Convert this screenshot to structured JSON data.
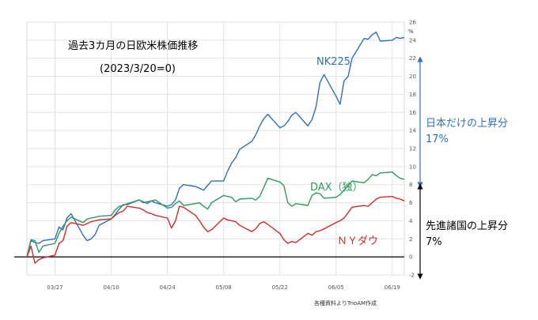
{
  "chart_data": {
    "type": "line",
    "title": "過去3カ月の日欧米株価推移",
    "subtitle": "(2023/3/20=0)",
    "unit_label": "%",
    "ylim": [
      -2,
      26
    ],
    "y_ticks": [
      -2,
      0,
      2,
      4,
      6,
      8,
      10,
      12,
      14,
      16,
      18,
      20,
      22,
      24,
      26
    ],
    "x_tick_labels": [
      "03/27",
      "04/10",
      "04/24",
      "05/08",
      "05/22",
      "06/05",
      "06/19"
    ],
    "x_tick_days": [
      7,
      21,
      35,
      49,
      63,
      77,
      91
    ],
    "grid": true,
    "source": "各種資料よりTrioAM作成",
    "series": [
      {
        "name": "NK225",
        "color": "#2f6fbd",
        "days": [
          0,
          1,
          2,
          3,
          4,
          7,
          8,
          9,
          10,
          11,
          14,
          15,
          16,
          17,
          18,
          21,
          22,
          23,
          24,
          25,
          28,
          29,
          30,
          31,
          32,
          35,
          36,
          37,
          38,
          39,
          42,
          43,
          44,
          45,
          46,
          49,
          50,
          51,
          52,
          53,
          56,
          57,
          58,
          59,
          60,
          63,
          64,
          65,
          66,
          67,
          70,
          71,
          72,
          73,
          74,
          77,
          78,
          79,
          80,
          81,
          84,
          85,
          86,
          87,
          88,
          91,
          92,
          93,
          94
        ],
        "values": [
          0,
          1.8,
          1.6,
          1.5,
          1.8,
          2.0,
          3.3,
          3.0,
          4.3,
          4.8,
          2.4,
          1.8,
          2.0,
          2.5,
          3.5,
          4.2,
          4.7,
          5.3,
          5.8,
          5.8,
          6.3,
          6.0,
          6.1,
          6.2,
          6.0,
          5.6,
          5.8,
          6.3,
          7.6,
          8.0,
          7.8,
          7.6,
          7.4,
          7.9,
          8.4,
          8.4,
          9.5,
          10.4,
          11.0,
          11.9,
          12.8,
          13.5,
          14.5,
          15.3,
          15.8,
          14.3,
          14.5,
          15.0,
          15.7,
          16.0,
          14.5,
          15.2,
          16.6,
          19.3,
          20.2,
          17.8,
          16.9,
          19.5,
          20.0,
          22.0,
          24.2,
          24.1,
          24.6,
          24.9,
          23.9,
          24.0,
          24.3,
          24.2,
          24.3
        ]
      },
      {
        "name": "DAX（独）",
        "color": "#2e9a5c",
        "days": [
          0,
          1,
          2,
          3,
          4,
          7,
          8,
          9,
          10,
          11,
          14,
          15,
          16,
          17,
          18,
          21,
          22,
          23,
          24,
          25,
          28,
          29,
          30,
          31,
          32,
          35,
          36,
          37,
          38,
          39,
          42,
          43,
          44,
          45,
          46,
          49,
          50,
          51,
          52,
          53,
          56,
          57,
          58,
          59,
          60,
          63,
          64,
          65,
          66,
          67,
          70,
          71,
          72,
          73,
          74,
          77,
          78,
          79,
          80,
          81,
          84,
          85,
          86,
          87,
          88,
          91,
          92,
          93,
          94
        ],
        "values": [
          0,
          1.9,
          1.8,
          0.5,
          1.2,
          1.5,
          2.6,
          3.4,
          4.0,
          4.4,
          3.8,
          4.2,
          4.3,
          4.4,
          4.5,
          4.6,
          5.2,
          5.6,
          5.7,
          5.9,
          6.3,
          6.1,
          5.9,
          6.2,
          6.3,
          5.4,
          5.5,
          5.9,
          6.2,
          5.7,
          5.9,
          6.0,
          5.6,
          5.3,
          6.0,
          6.8,
          6.7,
          6.6,
          6.1,
          6.4,
          6.5,
          6.3,
          6.7,
          7.7,
          8.7,
          8.3,
          7.9,
          6.0,
          5.6,
          5.9,
          5.7,
          6.8,
          7.1,
          7.0,
          6.5,
          6.6,
          6.9,
          7.4,
          7.9,
          8.4,
          8.2,
          8.6,
          9.1,
          9.0,
          9.3,
          9.4,
          9.0,
          8.7,
          8.6
        ]
      },
      {
        "name": "ＮＹダウ",
        "color": "#d22a2a",
        "days": [
          0,
          1,
          2,
          3,
          4,
          7,
          8,
          9,
          10,
          11,
          14,
          15,
          16,
          17,
          18,
          21,
          22,
          23,
          24,
          25,
          28,
          29,
          30,
          31,
          32,
          35,
          36,
          37,
          38,
          39,
          42,
          43,
          44,
          45,
          46,
          49,
          50,
          51,
          52,
          53,
          56,
          57,
          58,
          59,
          60,
          63,
          64,
          65,
          66,
          67,
          70,
          71,
          72,
          73,
          74,
          77,
          78,
          79,
          80,
          81,
          84,
          85,
          86,
          87,
          88,
          91,
          92,
          93,
          94
        ],
        "values": [
          0,
          1.2,
          -0.7,
          -0.3,
          -0.1,
          0.2,
          1.5,
          1.8,
          3.4,
          3.8,
          3.5,
          3.7,
          3.9,
          4.0,
          4.1,
          4.2,
          4.6,
          4.9,
          5.1,
          5.6,
          5.4,
          5.2,
          4.9,
          4.8,
          4.6,
          4.3,
          3.2,
          4.0,
          5.6,
          5.5,
          4.6,
          4.0,
          3.3,
          2.8,
          3.0,
          4.3,
          4.1,
          4.0,
          3.9,
          3.5,
          2.8,
          3.1,
          3.7,
          3.9,
          3.6,
          2.6,
          1.9,
          1.5,
          1.7,
          1.6,
          2.6,
          2.4,
          2.8,
          2.9,
          3.1,
          3.8,
          4.0,
          4.3,
          4.9,
          5.5,
          5.7,
          5.6,
          6.0,
          6.4,
          6.6,
          6.7,
          6.5,
          6.4,
          6.2
        ]
      }
    ],
    "annotations": {
      "jp_gain_label": "日本だけの上昇分",
      "jp_gain_value": "17%",
      "dev_gain_label": "先進諸国の上昇分",
      "dev_gain_value": "7%"
    },
    "colors": {
      "axis": "#000000",
      "grid": "#e2e2e2",
      "nk225": "#2f6fbd",
      "dax": "#2e9a5c",
      "ny": "#d22a2a",
      "jp_arrow": "#2f6fbd",
      "dev_arrow": "#000000"
    }
  }
}
